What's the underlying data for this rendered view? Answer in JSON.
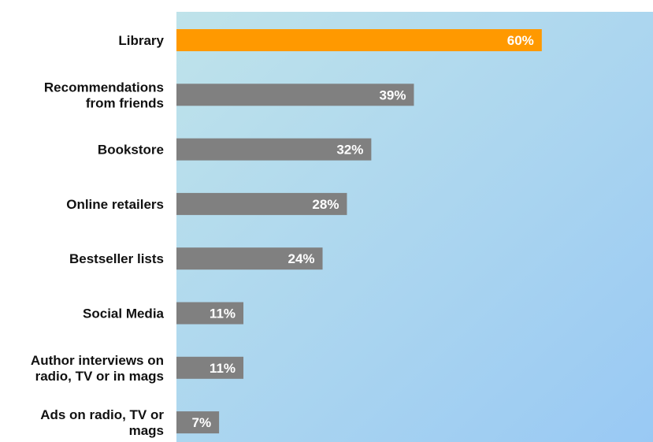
{
  "chart_data": {
    "type": "bar",
    "orientation": "horizontal",
    "categories": [
      "Library",
      "Recommendations from friends",
      "Bookstore",
      "Online retailers",
      "Bestseller lists",
      "Social Media",
      "Author interviews on radio, TV or in mags",
      "Ads on radio, TV or mags"
    ],
    "category_label_lines": [
      [
        "Library"
      ],
      [
        "Recommendations",
        "from friends"
      ],
      [
        "Bookstore"
      ],
      [
        "Online retailers"
      ],
      [
        "Bestseller lists"
      ],
      [
        "Social Media"
      ],
      [
        "Author interviews on",
        "radio, TV or in mags"
      ],
      [
        "Ads on radio, TV or",
        "mags"
      ]
    ],
    "values": [
      60,
      39,
      32,
      28,
      24,
      11,
      11,
      7
    ],
    "value_labels": [
      "60%",
      "39%",
      "32%",
      "28%",
      "24%",
      "11%",
      "11%",
      "7%"
    ],
    "highlight_index": 0,
    "colors": {
      "highlight_bar": "#ff9900",
      "bar": "#808080",
      "plot_bg_start": "#bfe3ea",
      "plot_bg_end": "#99c9f4",
      "value_text": "#ffffff",
      "category_text": "#111111"
    },
    "xlim": [
      0,
      100
    ],
    "grid": false,
    "legend": "none",
    "title": "",
    "xlabel": "",
    "ylabel": ""
  }
}
